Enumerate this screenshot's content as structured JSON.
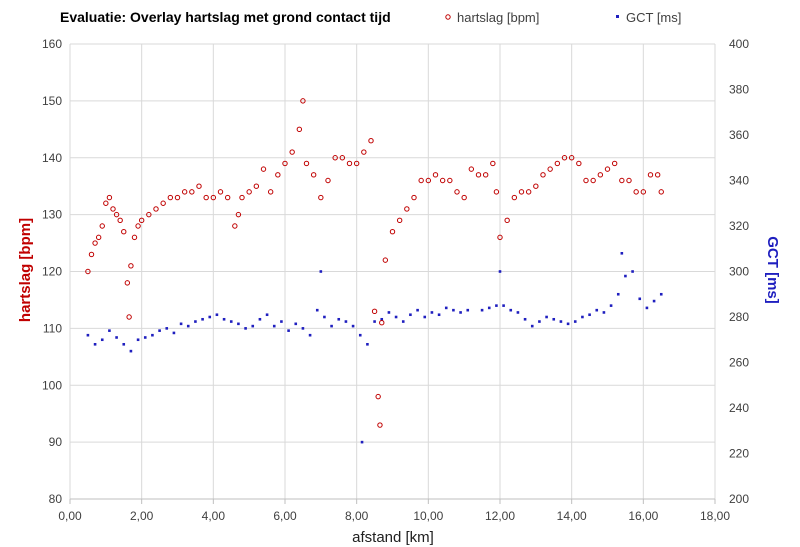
{
  "chart_data": {
    "type": "scatter",
    "title": "Evaluatie: Overlay hartslag met grond contact tijd",
    "xlabel": "afstand [km]",
    "ylabel_left": "hartslag [bpm]",
    "ylabel_right": "GCT [ms]",
    "xlim": [
      0,
      18
    ],
    "ylim_left": [
      80,
      160
    ],
    "ylim_right": [
      200,
      400
    ],
    "x_ticks": [
      "0,00",
      "2,00",
      "4,00",
      "6,00",
      "8,00",
      "10,00",
      "12,00",
      "14,00",
      "16,00",
      "18,00"
    ],
    "y_ticks_left": [
      "80",
      "90",
      "100",
      "110",
      "120",
      "130",
      "140",
      "150",
      "160"
    ],
    "y_ticks_right": [
      "200",
      "220",
      "240",
      "260",
      "280",
      "300",
      "320",
      "340",
      "360",
      "380",
      "400"
    ],
    "grid": true,
    "legend_position": "top",
    "colors": {
      "hartslag": "#c00000",
      "gct": "#1f1fbf"
    },
    "series": [
      {
        "name": "hartslag [bpm]",
        "axis": "left",
        "marker": "open-circle",
        "x": [
          0.5,
          0.6,
          0.7,
          0.8,
          0.9,
          1.0,
          1.1,
          1.2,
          1.3,
          1.4,
          1.5,
          1.6,
          1.65,
          1.7,
          1.8,
          1.9,
          2.0,
          2.2,
          2.4,
          2.6,
          2.8,
          3.0,
          3.2,
          3.4,
          3.6,
          3.8,
          4.0,
          4.2,
          4.4,
          4.6,
          4.7,
          4.8,
          5.0,
          5.2,
          5.4,
          5.6,
          5.8,
          6.0,
          6.2,
          6.4,
          6.5,
          6.6,
          6.8,
          7.0,
          7.2,
          7.4,
          7.6,
          7.8,
          8.0,
          8.2,
          8.4,
          8.5,
          8.6,
          8.65,
          8.7,
          8.8,
          9.0,
          9.2,
          9.4,
          9.6,
          9.8,
          10.0,
          10.2,
          10.4,
          10.6,
          10.8,
          11.0,
          11.2,
          11.4,
          11.6,
          11.8,
          11.9,
          12.0,
          12.2,
          12.4,
          12.6,
          12.8,
          13.0,
          13.2,
          13.4,
          13.6,
          13.8,
          14.0,
          14.2,
          14.4,
          14.6,
          14.8,
          15.0,
          15.2,
          15.4,
          15.6,
          15.8,
          16.0,
          16.2,
          16.4,
          16.5
        ],
        "values": [
          120,
          123,
          125,
          126,
          128,
          132,
          133,
          131,
          130,
          129,
          127,
          118,
          112,
          121,
          126,
          128,
          129,
          130,
          131,
          132,
          133,
          133,
          134,
          134,
          135,
          133,
          133,
          134,
          133,
          128,
          130,
          133,
          134,
          135,
          138,
          134,
          137,
          139,
          141,
          145,
          150,
          139,
          137,
          133,
          136,
          140,
          140,
          139,
          139,
          141,
          143,
          113,
          98,
          93,
          111,
          122,
          127,
          129,
          131,
          133,
          136,
          136,
          137,
          136,
          136,
          134,
          133,
          138,
          137,
          137,
          139,
          134,
          126,
          129,
          133,
          134,
          134,
          135,
          137,
          138,
          139,
          140,
          140,
          139,
          136,
          136,
          137,
          138,
          139,
          136,
          136,
          134,
          134,
          137,
          137,
          134
        ]
      },
      {
        "name": "GCT [ms]",
        "axis": "right",
        "marker": "small-filled-square",
        "x": [
          0.5,
          0.7,
          0.9,
          1.1,
          1.3,
          1.5,
          1.7,
          1.9,
          2.1,
          2.3,
          2.5,
          2.7,
          2.9,
          3.1,
          3.3,
          3.5,
          3.7,
          3.9,
          4.1,
          4.3,
          4.5,
          4.7,
          4.9,
          5.1,
          5.3,
          5.5,
          5.7,
          5.9,
          6.1,
          6.3,
          6.5,
          6.7,
          6.9,
          7.0,
          7.1,
          7.3,
          7.5,
          7.7,
          7.9,
          8.1,
          8.15,
          8.3,
          8.5,
          8.7,
          8.9,
          9.1,
          9.3,
          9.5,
          9.7,
          9.9,
          10.1,
          10.3,
          10.5,
          10.7,
          10.9,
          11.1,
          11.5,
          11.7,
          11.9,
          12.0,
          12.1,
          12.3,
          12.5,
          12.7,
          12.9,
          13.1,
          13.3,
          13.5,
          13.7,
          13.9,
          14.1,
          14.3,
          14.5,
          14.7,
          14.9,
          15.1,
          15.3,
          15.4,
          15.5,
          15.7,
          15.9,
          16.1,
          16.3,
          16.5
        ],
        "values": [
          272,
          268,
          270,
          274,
          271,
          268,
          265,
          270,
          271,
          272,
          274,
          275,
          273,
          277,
          276,
          278,
          279,
          280,
          281,
          279,
          278,
          277,
          275,
          276,
          279,
          281,
          276,
          278,
          274,
          277,
          275,
          272,
          283,
          300,
          280,
          276,
          279,
          278,
          276,
          272,
          225,
          268,
          278,
          279,
          282,
          280,
          278,
          281,
          283,
          280,
          282,
          281,
          284,
          283,
          282,
          283,
          283,
          284,
          285,
          300,
          285,
          283,
          282,
          279,
          276,
          278,
          280,
          279,
          278,
          277,
          278,
          280,
          281,
          283,
          282,
          285,
          290,
          308,
          298,
          300,
          288,
          284,
          287,
          290
        ]
      }
    ]
  }
}
